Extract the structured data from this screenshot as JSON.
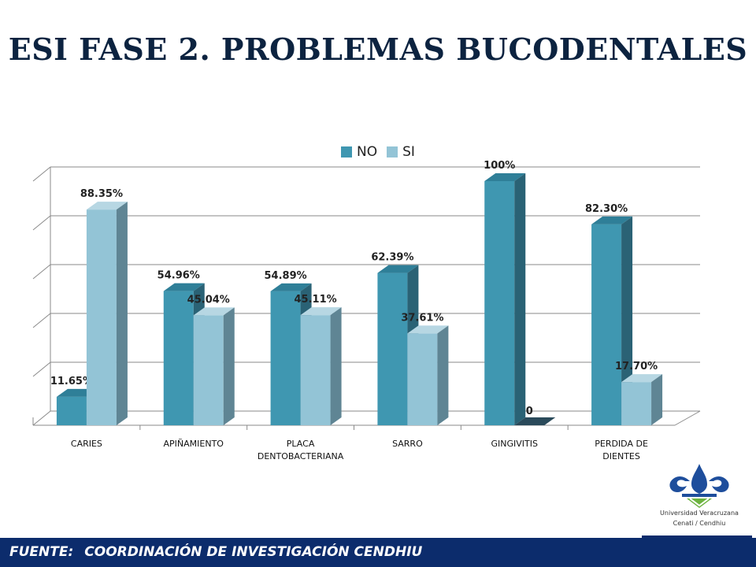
{
  "title": "ESI FASE 2. PROBLEMAS BUCODENTALES",
  "footer": {
    "label": "FUENTE:",
    "source": "COORDINACIÓN DE INVESTIGACIÓN CENDHIU"
  },
  "logo": {
    "line1": "Universidad Veracruzana",
    "line2": "Cenati / Cendhiu"
  },
  "colors": {
    "no": "#3f97b1",
    "si": "#93c4d6",
    "title": "#0c2340",
    "footer": "#0c2c6c"
  },
  "chart_data": {
    "type": "bar",
    "categories": [
      "CARIES",
      "APIÑAMIENTO",
      "PLACA\nDENTOBACTERIANA",
      "SARRO",
      "GINGIVITIS",
      "PERDIDA DE\nDIENTES"
    ],
    "series": [
      {
        "name": "NO",
        "values": [
          11.65,
          54.96,
          54.89,
          62.39,
          100,
          82.3
        ],
        "labels": [
          "11.65%",
          "54.96%",
          "54.89%",
          "62.39%",
          "100%",
          "82.30%"
        ]
      },
      {
        "name": "SI",
        "values": [
          88.35,
          45.04,
          45.11,
          37.61,
          0,
          17.7
        ],
        "labels": [
          "88.35%",
          "45.04%",
          "45.11%",
          "37.61%",
          "0",
          "17.70%"
        ]
      }
    ],
    "ylim": [
      0,
      100
    ],
    "grid": true,
    "legend": "top-center"
  }
}
